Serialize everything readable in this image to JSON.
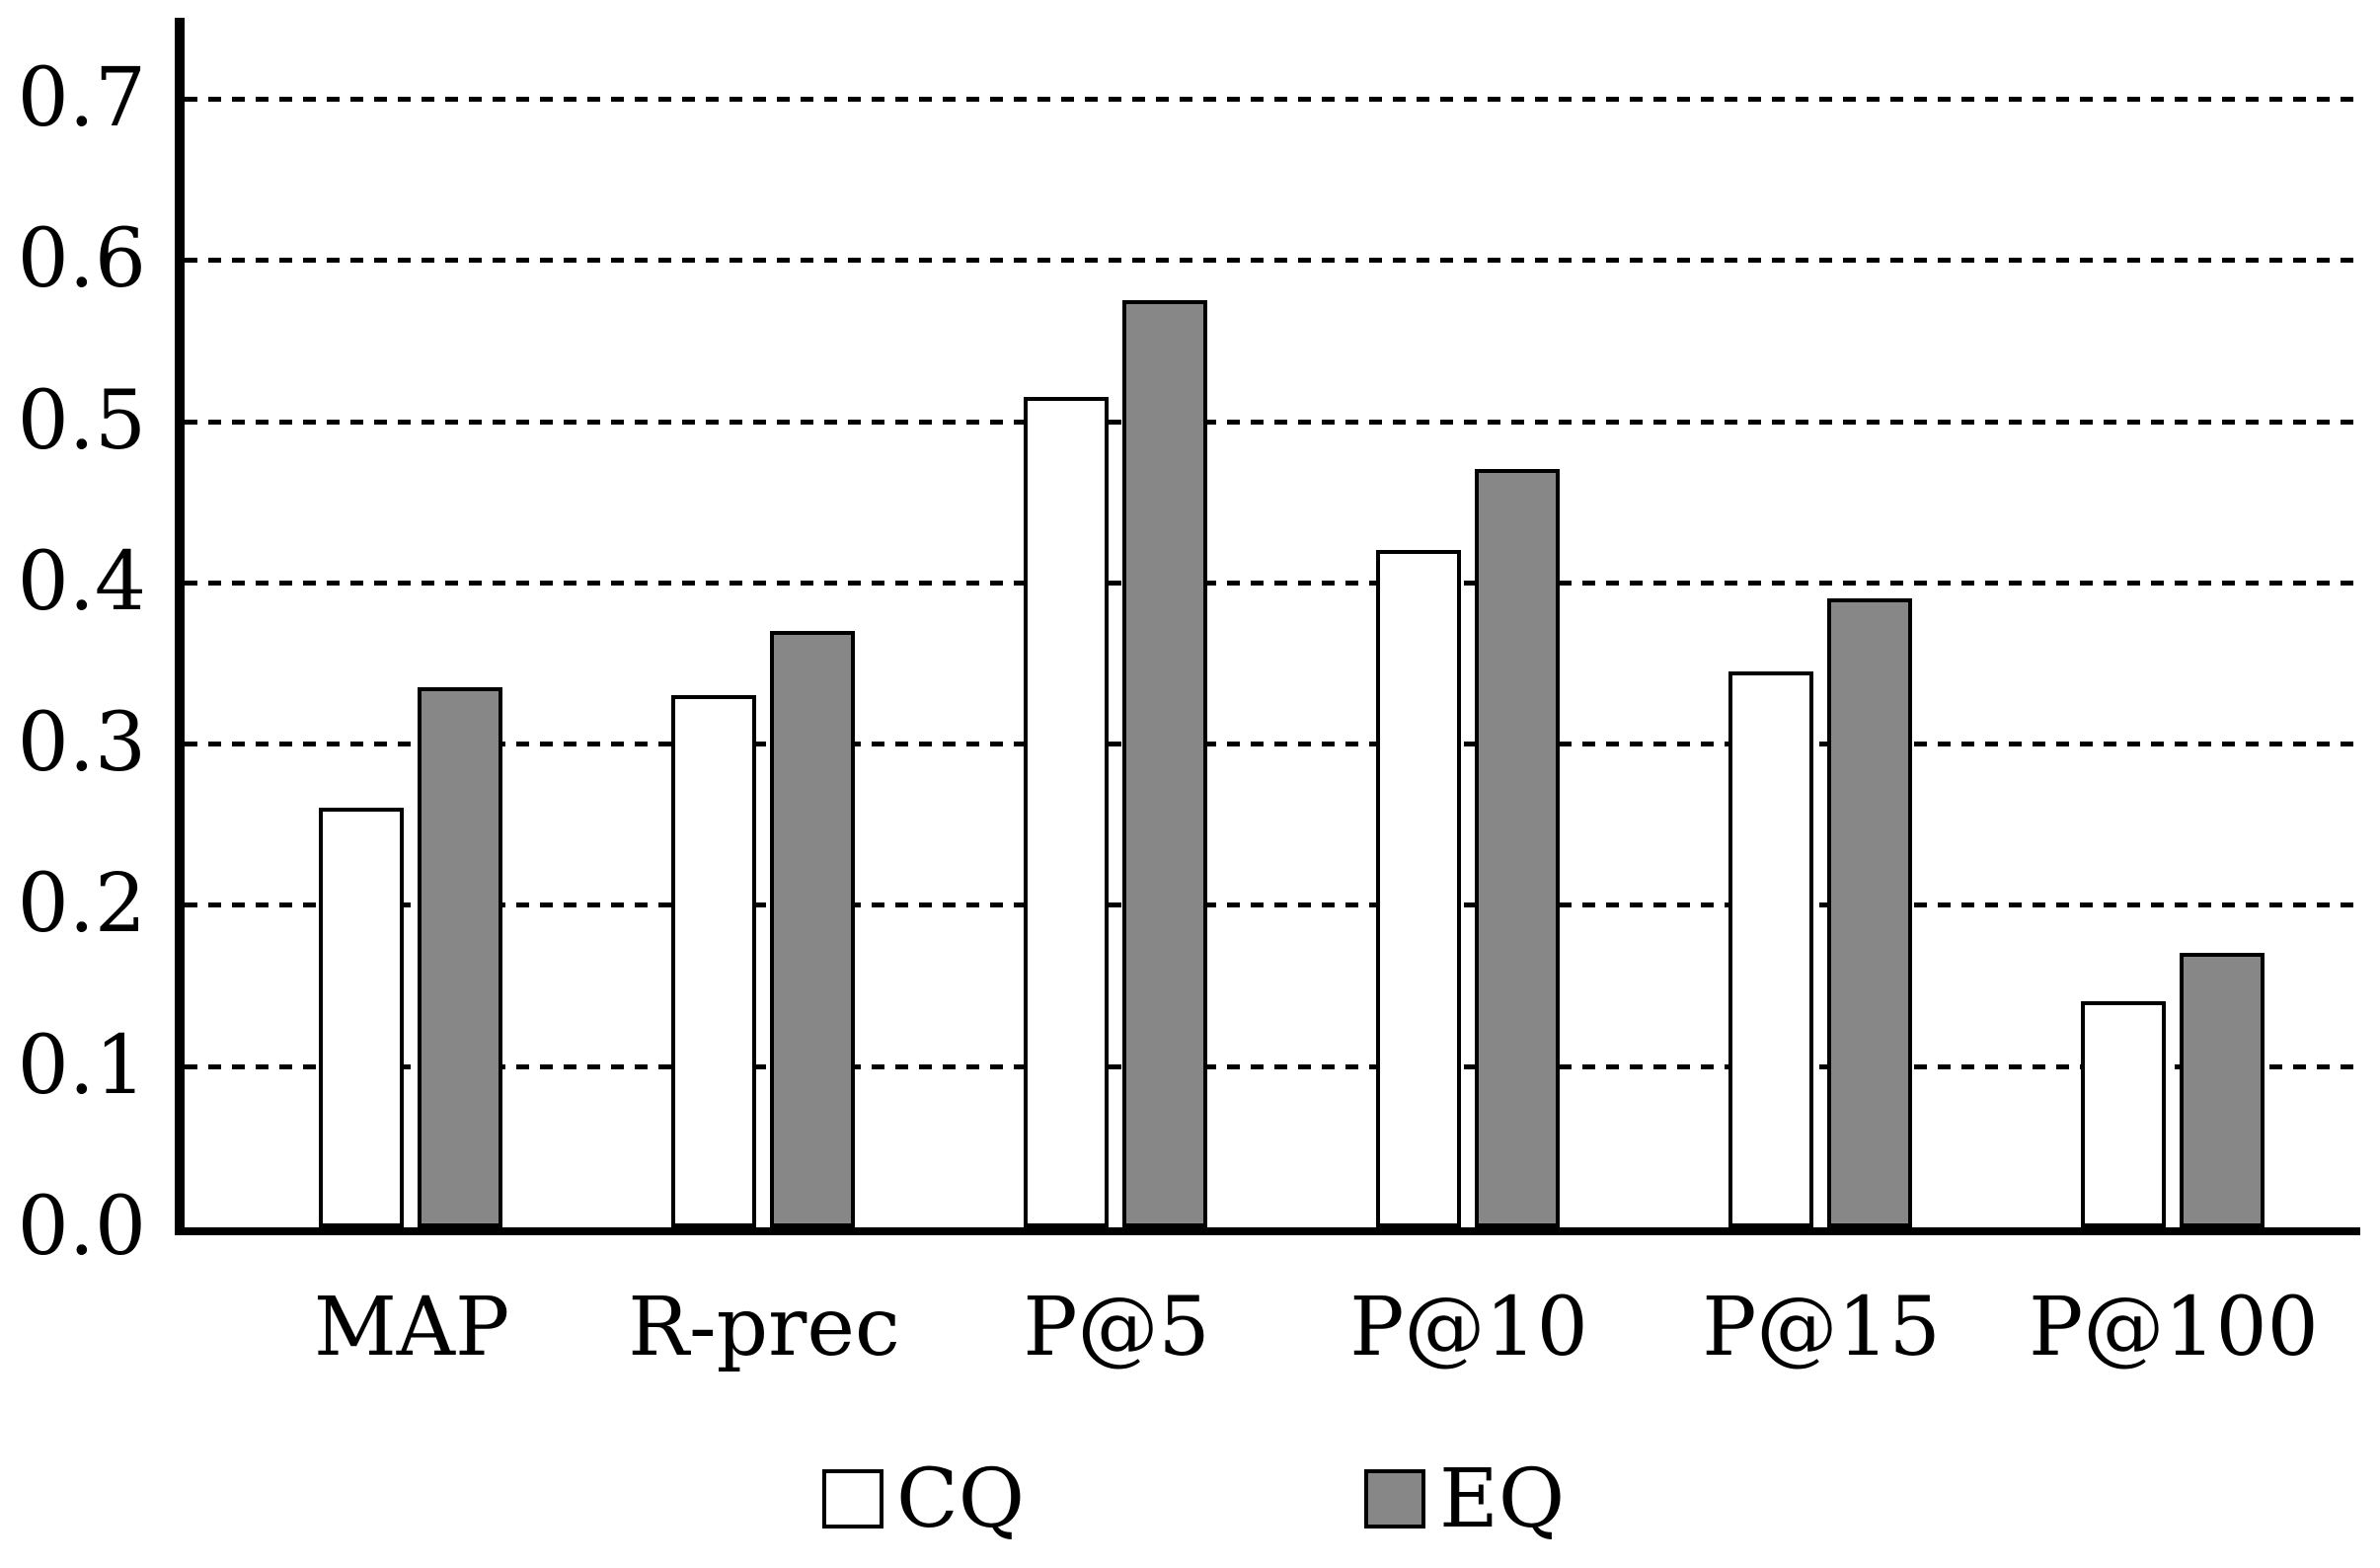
{
  "figure": {
    "background": "#ffffff",
    "axis_color": "#000000",
    "grid_style": "horizontal dotted lines"
  },
  "chart_data": {
    "type": "bar",
    "title": "",
    "xlabel": "",
    "ylabel": "",
    "categories": [
      "MAP",
      "R-prec",
      "P@5",
      "P@10",
      "P@15",
      "P@100"
    ],
    "series": [
      {
        "name": "CQ",
        "fill": "#ffffff",
        "edge": "#000000",
        "values": [
          0.26,
          0.33,
          0.515,
          0.42,
          0.345,
          0.14
        ]
      },
      {
        "name": "EQ",
        "fill": "#878787",
        "edge": "#000000",
        "values": [
          0.335,
          0.37,
          0.575,
          0.47,
          0.39,
          0.17
        ]
      }
    ],
    "ylim": [
      0.0,
      0.75
    ],
    "yticks": [
      0.0,
      0.1,
      0.2,
      0.3,
      0.4,
      0.5,
      0.6,
      0.7
    ],
    "ytick_labels": [
      "0.0",
      "0.1",
      "0.2",
      "0.3",
      "0.4",
      "0.5",
      "0.6",
      "0.7"
    ],
    "grid": "on",
    "legend_position": "bottom",
    "legend": [
      "CQ",
      "EQ"
    ]
  }
}
